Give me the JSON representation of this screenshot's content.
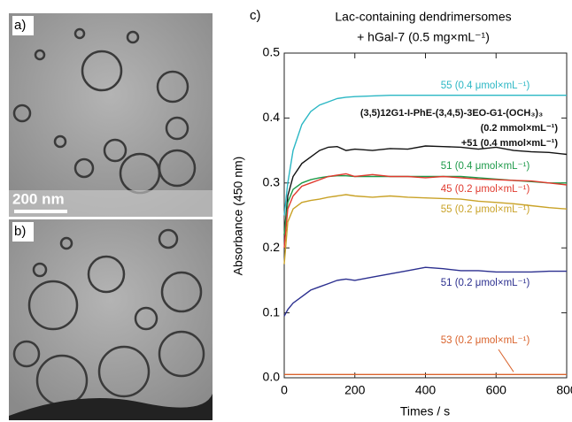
{
  "panels": {
    "a": "a)",
    "b": "b)",
    "scale_bar": "200 nm"
  },
  "chart_data": {
    "type": "line",
    "panel_label": "c)",
    "title": "Lac-containing dendrimersomes",
    "subtitle": "+ hGal-7 (0.5 mg×mL⁻¹)",
    "x_label": "Times / s",
    "y_label": "Absorbance (450 nm)",
    "xlim": [
      0,
      800
    ],
    "xticks": [
      0,
      200,
      400,
      600,
      800
    ],
    "ylim": [
      0,
      0.5
    ],
    "yticks": [
      {
        "value": 0,
        "label": "0.0"
      },
      0.1,
      0.2,
      0.3,
      0.4,
      0.5
    ],
    "x": [
      0,
      10,
      25,
      50,
      75,
      100,
      125,
      150,
      175,
      200,
      250,
      300,
      350,
      400,
      450,
      500,
      550,
      600,
      650,
      700,
      750,
      800
    ],
    "series": [
      {
        "name": "55 (0.4 μmol×mL⁻¹)",
        "color": "#2bb7c4",
        "values": [
          0.25,
          0.3,
          0.35,
          0.39,
          0.41,
          0.42,
          0.425,
          0.43,
          0.432,
          0.433,
          0.434,
          0.435,
          0.435,
          0.435,
          0.435,
          0.435,
          0.435,
          0.435,
          0.435,
          0.435,
          0.435,
          0.435
        ]
      },
      {
        "name": [
          "(3,5)12G1-I-PhE-(3,4,5)-3EO-G1-(OCH₃)₃",
          "(0.2 mmol×mL⁻¹)",
          "+51 (0.4 mmol×mL⁻¹)"
        ],
        "color": "#111111",
        "values": [
          0.22,
          0.28,
          0.31,
          0.33,
          0.34,
          0.35,
          0.355,
          0.356,
          0.35,
          0.352,
          0.35,
          0.353,
          0.352,
          0.357,
          0.356,
          0.355,
          0.352,
          0.355,
          0.35,
          0.348,
          0.347,
          0.344
        ]
      },
      {
        "name": "51 (0.4 μmol×mL⁻¹)",
        "color": "#1e9a4a",
        "values": [
          0.22,
          0.27,
          0.29,
          0.3,
          0.305,
          0.308,
          0.31,
          0.311,
          0.311,
          0.31,
          0.31,
          0.31,
          0.31,
          0.31,
          0.31,
          0.31,
          0.308,
          0.306,
          0.304,
          0.302,
          0.3,
          0.3
        ]
      },
      {
        "name": "45 (0.2 μmol×mL⁻¹)",
        "color": "#e03a2e",
        "values": [
          0.2,
          0.26,
          0.28,
          0.295,
          0.3,
          0.305,
          0.31,
          0.312,
          0.314,
          0.31,
          0.313,
          0.31,
          0.31,
          0.308,
          0.31,
          0.308,
          0.306,
          0.305,
          0.304,
          0.303,
          0.3,
          0.297
        ]
      },
      {
        "name": "55 (0.2 μmol×mL⁻¹)",
        "color": "#c9a227",
        "values": [
          0.175,
          0.24,
          0.26,
          0.27,
          0.273,
          0.275,
          0.278,
          0.28,
          0.282,
          0.28,
          0.278,
          0.28,
          0.278,
          0.277,
          0.276,
          0.275,
          0.272,
          0.27,
          0.268,
          0.265,
          0.262,
          0.26
        ]
      },
      {
        "name": "51 (0.2 μmol×mL⁻¹)",
        "color": "#2b2f8f",
        "values": [
          0.095,
          0.105,
          0.115,
          0.125,
          0.135,
          0.14,
          0.145,
          0.15,
          0.152,
          0.15,
          0.155,
          0.16,
          0.165,
          0.17,
          0.168,
          0.165,
          0.165,
          0.163,
          0.163,
          0.163,
          0.164,
          0.164
        ]
      },
      {
        "name": "53 (0.2 μmol×mL⁻¹)",
        "color": "#d9622b",
        "values": [
          0.005,
          0.005,
          0.005,
          0.005,
          0.005,
          0.005,
          0.005,
          0.005,
          0.005,
          0.005,
          0.005,
          0.005,
          0.005,
          0.005,
          0.005,
          0.005,
          0.005,
          0.005,
          0.005,
          0.005,
          0.005,
          0.005
        ]
      }
    ]
  }
}
